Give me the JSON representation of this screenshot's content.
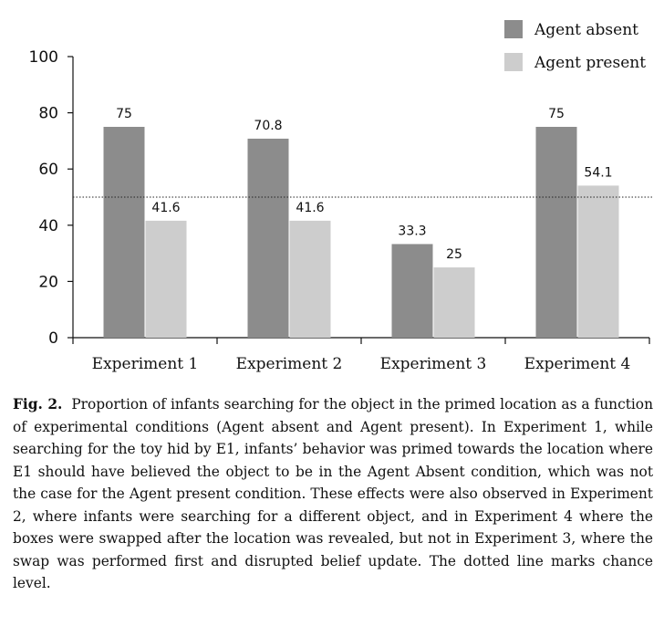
{
  "chart_data": {
    "type": "bar",
    "categories": [
      "Experiment 1",
      "Experiment 2",
      "Experiment 3",
      "Experiment 4"
    ],
    "series": [
      {
        "name": "Agent absent",
        "color": "#8c8c8c",
        "values": [
          75,
          70.8,
          33.3,
          75
        ]
      },
      {
        "name": "Agent present",
        "color": "#cdcdcd",
        "values": [
          41.6,
          41.6,
          25,
          54.1
        ]
      }
    ],
    "data_labels": [
      [
        "75",
        "70.8",
        "33.3",
        "75"
      ],
      [
        "41.6",
        "41.6",
        "25",
        "54.1"
      ]
    ],
    "y_ticks": [
      0,
      20,
      40,
      60,
      80,
      100
    ],
    "ylim": [
      0,
      100
    ],
    "reference_line": {
      "value": 50,
      "style": "dotted"
    },
    "legend_position": "top-right",
    "grid": false
  },
  "caption": {
    "label": "Fig. 2.",
    "text": "Proportion of infants searching for the object in the primed location as a function of experimental conditions (Agent absent and Agent present). In Experiment 1, while searching for the toy hid by E1, infants’ behavior was primed towards the location where E1 should have believed the object to be in the Agent Absent condition, which was not the case for the Agent present condition. These effects were also observed in Experiment 2, where infants were searching for a different object, and in Experiment 4 where the boxes were swapped after the location was revealed, but not in Experiment 3, where the swap was performed first and disrupted belief update. The dotted line marks chance level."
  }
}
